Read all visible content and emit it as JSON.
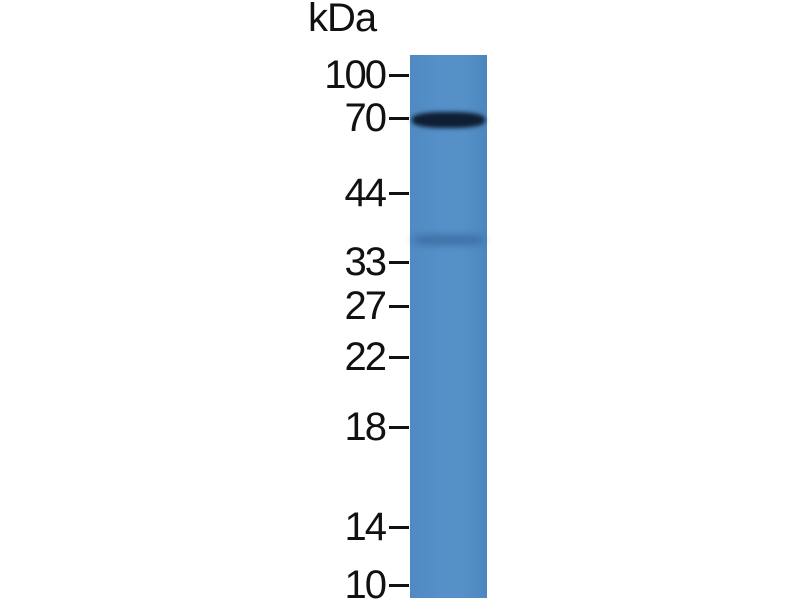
{
  "unit_label": "kDa",
  "markers": [
    {
      "label": "100",
      "kda": 100
    },
    {
      "label": "70",
      "kda": 70
    },
    {
      "label": "44",
      "kda": 44
    },
    {
      "label": "33",
      "kda": 33
    },
    {
      "label": "27",
      "kda": 27
    },
    {
      "label": "22",
      "kda": 22
    },
    {
      "label": "18",
      "kda": 18
    },
    {
      "label": "14",
      "kda": 14
    },
    {
      "label": "10",
      "kda": 10
    }
  ],
  "lane_color": "#5590c8",
  "bands": [
    {
      "kda": 70,
      "intensity": "strong",
      "color": "#0f1e33"
    },
    {
      "kda": 36,
      "intensity": "faint",
      "color": "#2c5a8e"
    }
  ]
}
